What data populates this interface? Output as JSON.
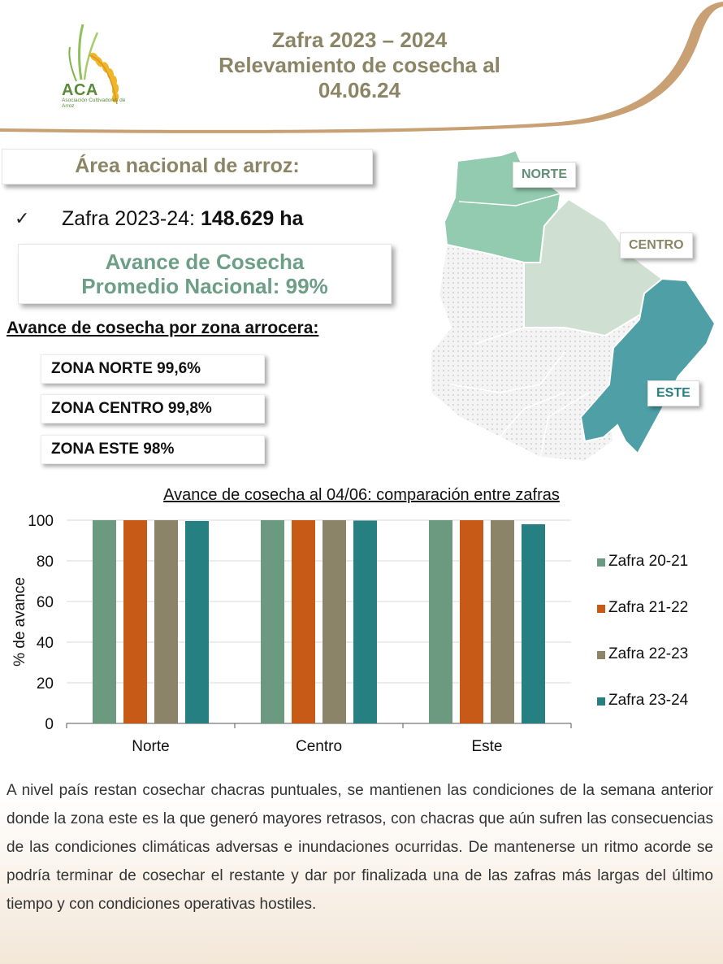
{
  "header": {
    "logo_text": "ACA",
    "logo_subtext": "Asociación Cultivadores de Arroz",
    "title_lines": [
      "Zafra 2023 – 2024",
      "Relevamiento de cosecha al",
      "04.06.24"
    ]
  },
  "area": {
    "heading": "Área nacional de arroz:",
    "check_mark": "✓",
    "zafra_label": "Zafra 2023-24:",
    "zafra_value": "148.629 ha"
  },
  "avance_promedio": {
    "line1": "Avance de Cosecha",
    "line2": "Promedio Nacional: 99%"
  },
  "zonas": {
    "heading": "Avance de cosecha por zona arrocera:",
    "items": [
      "ZONA NORTE 99,6%",
      "ZONA CENTRO 99,8%",
      "ZONA ESTE 98%"
    ]
  },
  "map": {
    "labels": [
      "NORTE",
      "CENTRO",
      "ESTE"
    ],
    "colors": {
      "norte": "#93cbb0",
      "centro": "#cfe0d3",
      "este": "#4f9fa6",
      "other": "#ececec"
    }
  },
  "chart_data": {
    "type": "bar",
    "title": "Avance de cosecha al 04/06: comparación entre zafras",
    "categories": [
      "Norte",
      "Centro",
      "Este"
    ],
    "series": [
      {
        "name": "Zafra 20-21",
        "color": "#6b9a80",
        "values": [
          100,
          100,
          100
        ]
      },
      {
        "name": "Zafra 21-22",
        "color": "#c65a16",
        "values": [
          100,
          100,
          100
        ]
      },
      {
        "name": "Zafra 22-23",
        "color": "#8c8468",
        "values": [
          100,
          100,
          100
        ]
      },
      {
        "name": "Zafra 23-24",
        "color": "#267f80",
        "values": [
          99.6,
          99.8,
          98
        ]
      }
    ],
    "ylabel": "% de avance",
    "xlabel": "",
    "ylim": [
      0,
      100
    ],
    "yticks": [
      "0",
      "20",
      "40",
      "60",
      "80",
      "100"
    ],
    "grid": true,
    "legend": "right"
  },
  "paragraph": "A nivel país restan cosechar chacras puntuales, se mantienen las condiciones de la semana anterior donde la zona este es la que generó mayores retrasos, con chacras que aún sufren las consecuencias de las condiciones climáticas adversas e inundaciones ocurridas. De mantenerse un ritmo acorde se podría terminar de cosechar el restante y dar por finalizada una de las zafras más largas del último tiempo y con condiciones operativas hostiles."
}
